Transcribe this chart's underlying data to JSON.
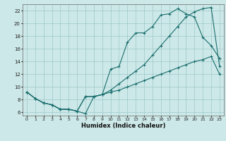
{
  "xlabel": "Humidex (Indice chaleur)",
  "xlim": [
    -0.5,
    23.5
  ],
  "ylim": [
    5.5,
    23.0
  ],
  "xticks": [
    0,
    1,
    2,
    3,
    4,
    5,
    6,
    7,
    8,
    9,
    10,
    11,
    12,
    13,
    14,
    15,
    16,
    17,
    18,
    19,
    20,
    21,
    22,
    23
  ],
  "yticks": [
    6,
    8,
    10,
    12,
    14,
    16,
    18,
    20,
    22
  ],
  "bg_color": "#cde8e8",
  "grid_color": "#9dc8c8",
  "line_color": "#1a6e6e",
  "curve1_x": [
    0,
    1,
    2,
    3,
    4,
    5,
    6,
    7,
    8,
    9,
    10,
    11,
    12,
    13,
    14,
    15,
    16,
    17,
    18,
    19,
    20,
    21,
    22,
    23
  ],
  "curve1_y": [
    9.2,
    8.2,
    7.5,
    7.2,
    6.5,
    6.5,
    6.2,
    5.8,
    8.5,
    8.8,
    12.8,
    13.2,
    17.0,
    18.5,
    18.5,
    19.5,
    21.3,
    21.5,
    22.3,
    21.5,
    21.0,
    17.8,
    16.5,
    14.5
  ],
  "curve2_x": [
    0,
    1,
    2,
    3,
    4,
    5,
    6,
    7,
    8,
    9,
    10,
    11,
    12,
    13,
    14,
    15,
    16,
    17,
    18,
    19,
    20,
    21,
    22,
    23
  ],
  "curve2_y": [
    9.2,
    8.2,
    7.5,
    7.2,
    6.5,
    6.5,
    6.2,
    8.5,
    8.5,
    8.8,
    9.5,
    10.5,
    11.5,
    12.5,
    13.5,
    15.0,
    16.5,
    18.0,
    19.5,
    21.0,
    21.8,
    22.3,
    22.5,
    13.2
  ],
  "curve3_x": [
    0,
    1,
    2,
    3,
    4,
    5,
    6,
    7,
    8,
    9,
    10,
    11,
    12,
    13,
    14,
    15,
    16,
    17,
    18,
    19,
    20,
    21,
    22,
    23
  ],
  "curve3_y": [
    9.2,
    8.2,
    7.5,
    7.2,
    6.5,
    6.5,
    6.2,
    8.5,
    8.5,
    8.8,
    9.2,
    9.5,
    10.0,
    10.5,
    11.0,
    11.5,
    12.0,
    12.5,
    13.0,
    13.5,
    14.0,
    14.3,
    14.8,
    12.0
  ]
}
